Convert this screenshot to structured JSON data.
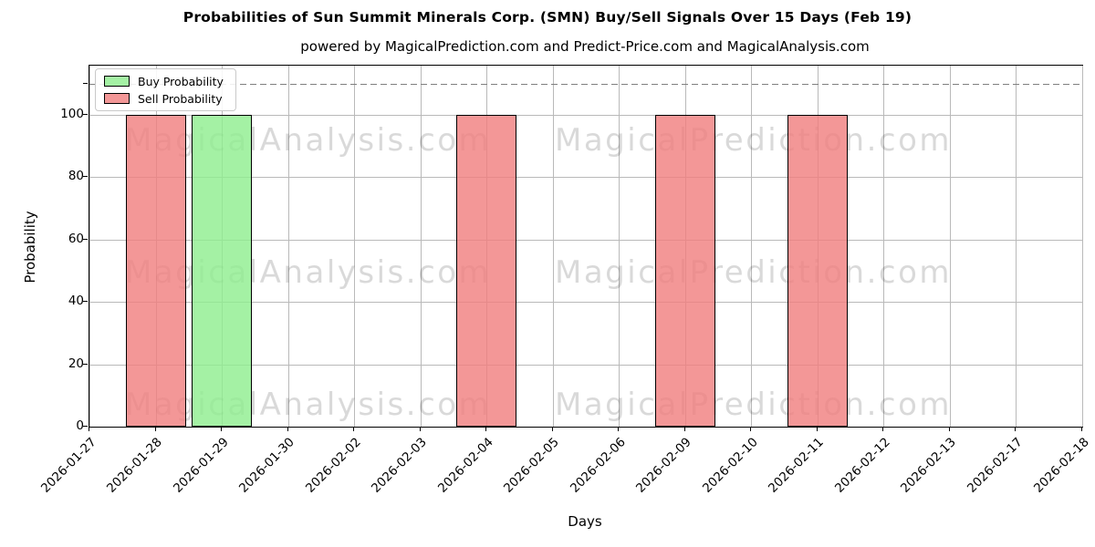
{
  "chart_data": {
    "type": "bar",
    "title": "Probabilities of Sun Summit Minerals Corp. (SMN) Buy/Sell Signals Over 15 Days (Feb 19)",
    "subtitle": "powered by MagicalPrediction.com and Predict-Price.com and MagicalAnalysis.com",
    "xlabel": "Days",
    "ylabel": "Probability",
    "categories": [
      "2026-01-27",
      "2026-01-28",
      "2026-01-29",
      "2026-01-30",
      "2026-02-02",
      "2026-02-03",
      "2026-02-04",
      "2026-02-05",
      "2026-02-06",
      "2026-02-09",
      "2026-02-10",
      "2026-02-11",
      "2026-02-12",
      "2026-02-13",
      "2026-02-17",
      "2026-02-18"
    ],
    "series": [
      {
        "name": "Buy Probability",
        "color": "#90ee90",
        "fill_rgba": "rgba(144,238,144,0.82)",
        "values": [
          0,
          0,
          100,
          0,
          0,
          0,
          0,
          0,
          0,
          0,
          0,
          0,
          0,
          0,
          0,
          0
        ]
      },
      {
        "name": "Sell Probability",
        "color": "#f08080",
        "fill_rgba": "rgba(240,128,128,0.82)",
        "values": [
          0,
          100,
          0,
          0,
          0,
          0,
          100,
          0,
          0,
          100,
          0,
          100,
          0,
          0,
          0,
          0
        ]
      }
    ],
    "ylim": [
      0,
      115.8
    ],
    "yticks": [
      0,
      20,
      40,
      60,
      80,
      100
    ],
    "dashed_line_y": 110,
    "grid": true,
    "legend_position": "upper left",
    "bar_edge_color": "#000000",
    "grid_color": "#b9b9b9",
    "dashed_line_color": "#7f7f7f"
  },
  "watermarks": {
    "left_text": "MagicalAnalysis.com",
    "right_text": "MagicalPrediction.com"
  }
}
